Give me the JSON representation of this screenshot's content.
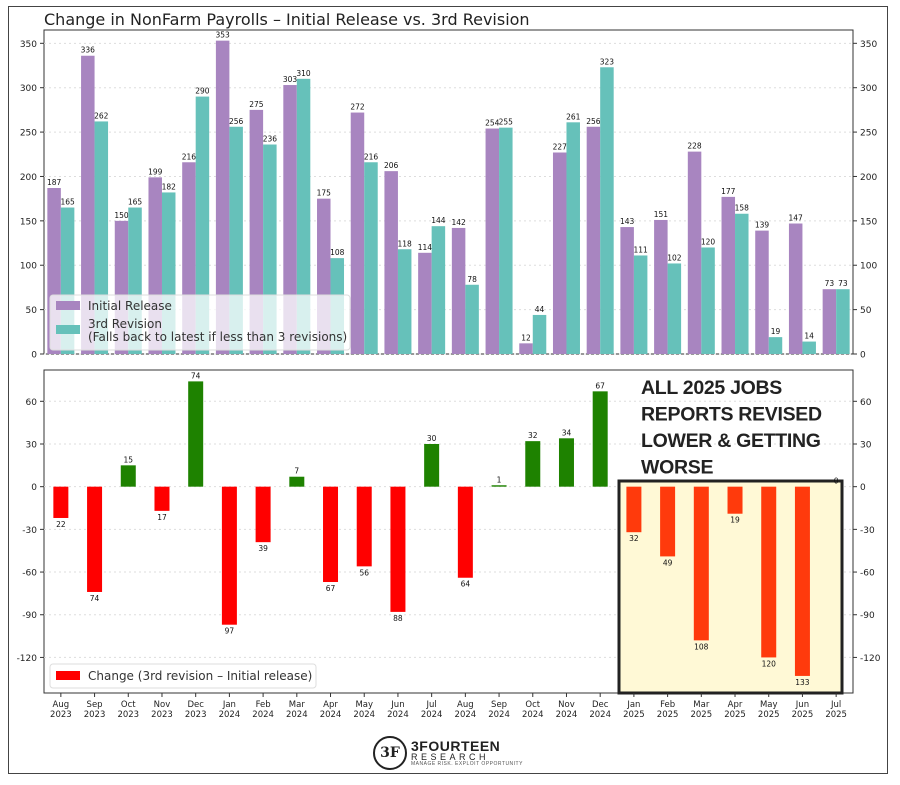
{
  "title": "Change in NonFarm Payrolls – Initial Release vs. 3rd Revision",
  "colors": {
    "initial": "#a885c0",
    "revision": "#66c1ba",
    "positive": "#1e8200",
    "negative": "#ff0000",
    "negative_2025": "#ff3a0c",
    "highlight_bg": "#fff9d6"
  },
  "chart_data": [
    {
      "type": "bar",
      "name": "top",
      "categories": [
        "Aug\n2023",
        "Sep\n2023",
        "Oct\n2023",
        "Nov\n2023",
        "Dec\n2023",
        "Jan\n2024",
        "Feb\n2024",
        "Mar\n2024",
        "Apr\n2024",
        "May\n2024",
        "Jun\n2024",
        "Jul\n2024",
        "Aug\n2024",
        "Sep\n2024",
        "Oct\n2024",
        "Nov\n2024",
        "Dec\n2024",
        "Jan\n2025",
        "Feb\n2025",
        "Mar\n2025",
        "Apr\n2025",
        "May\n2025",
        "Jun\n2025",
        "Jul\n2025"
      ],
      "series": [
        {
          "name": "Initial Release",
          "values": [
            187,
            336,
            150,
            199,
            216,
            353,
            275,
            303,
            175,
            272,
            206,
            114,
            142,
            254,
            12,
            227,
            256,
            143,
            151,
            228,
            177,
            139,
            147,
            73
          ]
        },
        {
          "name": "3rd Revision",
          "values": [
            165,
            262,
            165,
            182,
            290,
            256,
            236,
            310,
            108,
            216,
            118,
            144,
            78,
            255,
            44,
            261,
            323,
            111,
            102,
            120,
            158,
            19,
            14,
            73
          ]
        }
      ],
      "legend": [
        "Initial Release",
        "3rd Revision",
        "(Falls back to latest if less than 3 revisions)"
      ],
      "yticks": [
        0,
        50,
        100,
        150,
        200,
        250,
        300,
        350
      ],
      "ylim": [
        0,
        365
      ]
    },
    {
      "type": "bar",
      "name": "bottom",
      "categories": [
        "Aug\n2023",
        "Sep\n2023",
        "Oct\n2023",
        "Nov\n2023",
        "Dec\n2023",
        "Jan\n2024",
        "Feb\n2024",
        "Mar\n2024",
        "Apr\n2024",
        "May\n2024",
        "Jun\n2024",
        "Jul\n2024",
        "Aug\n2024",
        "Sep\n2024",
        "Oct\n2024",
        "Nov\n2024",
        "Dec\n2024",
        "Jan\n2025",
        "Feb\n2025",
        "Mar\n2025",
        "Apr\n2025",
        "May\n2025",
        "Jun\n2025",
        "Jul\n2025"
      ],
      "series": [
        {
          "name": "Change (3rd revision – Initial release)",
          "values": [
            -22,
            -74,
            15,
            -17,
            74,
            -97,
            -39,
            7,
            -67,
            -56,
            -88,
            30,
            -64,
            1,
            32,
            34,
            67,
            -32,
            -49,
            -108,
            -19,
            -120,
            -133,
            0
          ]
        }
      ],
      "labels": [
        "22",
        "74",
        "15",
        "17",
        "74",
        "97",
        "39",
        "7",
        "67",
        "56",
        "88",
        "30",
        "64",
        "1",
        "32",
        "34",
        "67",
        "32",
        "49",
        "108",
        "19",
        "120",
        "133",
        "0"
      ],
      "yticks": [
        -120,
        -90,
        -60,
        -30,
        0,
        30,
        60
      ],
      "ylim": [
        -145,
        82
      ],
      "annotation": [
        "ALL 2025 JOBS",
        "REPORTS REVISED",
        "LOWER & GETTING",
        "WORSE"
      ]
    }
  ],
  "logo": {
    "mark": "3F",
    "name": "3FOURTEEN",
    "sub": "RESEARCH",
    "tagline": "MANAGE RISK. EXPLOIT OPPORTUNITY"
  }
}
